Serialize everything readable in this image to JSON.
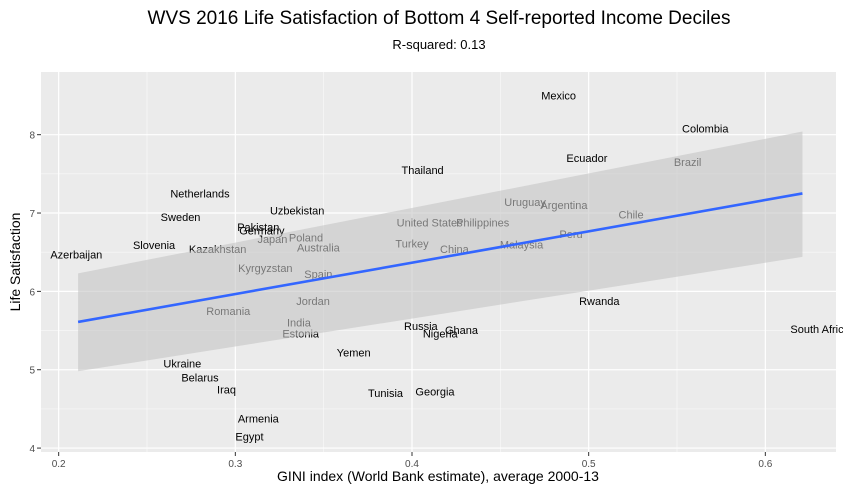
{
  "chart_data": {
    "type": "scatter",
    "title": "WVS 2016 Life Satisfaction of Bottom 4 Self-reported Income Deciles",
    "subtitle": "R-squared: 0.13",
    "xlabel": "GINI index (World Bank estimate), average 2000-13",
    "ylabel": "Life Satisfaction",
    "xlim": [
      0.19,
      0.64
    ],
    "ylim": [
      3.95,
      8.8
    ],
    "x_ticks": [
      0.2,
      0.3,
      0.4,
      0.5,
      0.6
    ],
    "x_tick_labels": [
      "0.2",
      "0.3",
      "0.4",
      "0.5",
      "0.6"
    ],
    "y_ticks": [
      4,
      5,
      6,
      7,
      8
    ],
    "y_tick_labels": [
      "4",
      "5",
      "6",
      "7",
      "8"
    ],
    "grid": true,
    "points": [
      {
        "label": "Mexico",
        "x": 0.483,
        "y": 8.5
      },
      {
        "label": "Colombia",
        "x": 0.566,
        "y": 8.08
      },
      {
        "label": "Ecuador",
        "x": 0.499,
        "y": 7.7
      },
      {
        "label": "Brazil",
        "x": 0.556,
        "y": 7.65
      },
      {
        "label": "Thailand",
        "x": 0.406,
        "y": 7.55
      },
      {
        "label": "Netherlands",
        "x": 0.28,
        "y": 7.25
      },
      {
        "label": "Uruguay",
        "x": 0.464,
        "y": 7.14
      },
      {
        "label": "Argentina",
        "x": 0.486,
        "y": 7.1
      },
      {
        "label": "Uzbekistan",
        "x": 0.335,
        "y": 7.03
      },
      {
        "label": "Sweden",
        "x": 0.269,
        "y": 6.95
      },
      {
        "label": "Chile",
        "x": 0.524,
        "y": 6.98
      },
      {
        "label": "United States",
        "x": 0.41,
        "y": 6.88
      },
      {
        "label": "Philippines",
        "x": 0.44,
        "y": 6.88
      },
      {
        "label": "Pakistan",
        "x": 0.313,
        "y": 6.82
      },
      {
        "label": "Germany",
        "x": 0.315,
        "y": 6.78
      },
      {
        "label": "Peru",
        "x": 0.49,
        "y": 6.73
      },
      {
        "label": "Japan",
        "x": 0.321,
        "y": 6.67
      },
      {
        "label": "Poland",
        "x": 0.34,
        "y": 6.69
      },
      {
        "label": "Turkey",
        "x": 0.4,
        "y": 6.61
      },
      {
        "label": "Malaysia",
        "x": 0.462,
        "y": 6.6
      },
      {
        "label": "Slovenia",
        "x": 0.254,
        "y": 6.59
      },
      {
        "label": "Kazakhstan",
        "x": 0.29,
        "y": 6.54
      },
      {
        "label": "Australia",
        "x": 0.347,
        "y": 6.56
      },
      {
        "label": "China",
        "x": 0.424,
        "y": 6.54
      },
      {
        "label": "Azerbaijan",
        "x": 0.21,
        "y": 6.47
      },
      {
        "label": "Kyrgyzstan",
        "x": 0.317,
        "y": 6.3
      },
      {
        "label": "Spain",
        "x": 0.347,
        "y": 6.22
      },
      {
        "label": "Jordan",
        "x": 0.344,
        "y": 5.88
      },
      {
        "label": "Rwanda",
        "x": 0.506,
        "y": 5.88
      },
      {
        "label": "Romania",
        "x": 0.296,
        "y": 5.75
      },
      {
        "label": "India",
        "x": 0.336,
        "y": 5.6
      },
      {
        "label": "Russia",
        "x": 0.405,
        "y": 5.56
      },
      {
        "label": "South Africa",
        "x": 0.631,
        "y": 5.52
      },
      {
        "label": "Ghana",
        "x": 0.428,
        "y": 5.51
      },
      {
        "label": "Estonia",
        "x": 0.337,
        "y": 5.46
      },
      {
        "label": "Nigeria",
        "x": 0.416,
        "y": 5.46
      },
      {
        "label": "Yemen",
        "x": 0.367,
        "y": 5.22
      },
      {
        "label": "Ukraine",
        "x": 0.27,
        "y": 5.08
      },
      {
        "label": "Belarus",
        "x": 0.28,
        "y": 4.9
      },
      {
        "label": "Iraq",
        "x": 0.295,
        "y": 4.75
      },
      {
        "label": "Tunisia",
        "x": 0.385,
        "y": 4.7
      },
      {
        "label": "Georgia",
        "x": 0.413,
        "y": 4.72
      },
      {
        "label": "Armenia",
        "x": 0.313,
        "y": 4.38
      },
      {
        "label": "Egypt",
        "x": 0.308,
        "y": 4.15
      }
    ],
    "trend": {
      "x": [
        0.211,
        0.621
      ],
      "y": [
        5.61,
        7.25
      ],
      "ci_lower": [
        4.98,
        6.44
      ],
      "ci_upper": [
        6.23,
        8.04
      ]
    },
    "colors": {
      "panel": "#ebebeb",
      "grid_major": "#ffffff",
      "trend": "#3366ff",
      "ribbon": "#c4c4c4",
      "label_text": "#000000",
      "axis_text": "#4d4d4d"
    }
  }
}
